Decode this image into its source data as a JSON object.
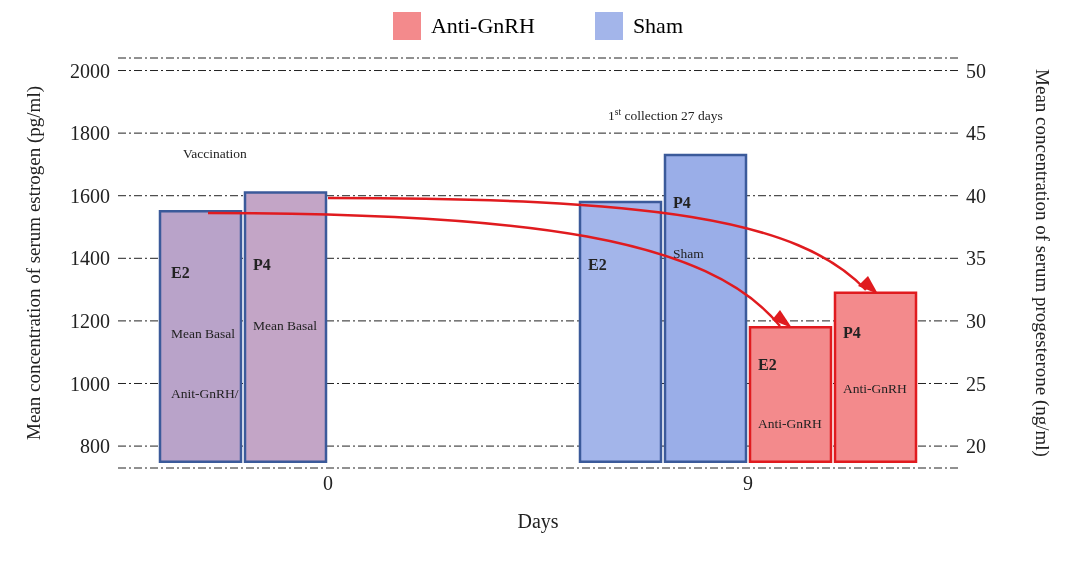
{
  "chart_data": {
    "type": "bar",
    "categories": [
      "0",
      "9"
    ],
    "xlabel": "Days",
    "ylabel": "Mean concentration of serum estrogen (pg/ml)",
    "y2label": "Mean concentration of serum progesterone (ng/ml)",
    "series": [
      {
        "name": "Sham",
        "color": "#a3b5ea",
        "colors": [
          "#b9a3c9",
          "#a3b5ea"
        ],
        "values": [
          800,
          830
        ],
        "base": [
          750,
          750
        ],
        "axis": "y"
      },
      {
        "color": "#8ea4e0",
        "colors": [
          "#c3a5c6",
          "#9aaee8"
        ],
        "values": [
          21.5,
          24.5
        ],
        "base": [
          18.75,
          18.75
        ],
        "axis": "y2"
      },
      {
        "name": "Anti-GnRH",
        "color": "#f38a8c",
        "values": [
          null,
          430
        ],
        "base": [
          null,
          750
        ],
        "axis": "y"
      },
      {
        "color": "#f38a8c",
        "values": [
          null,
          13.5
        ],
        "base": [
          null,
          18.75
        ],
        "axis": "y2"
      }
    ],
    "ylim": [
      730,
      2040
    ],
    "yticks": [
      800,
      1000,
      1200,
      1400,
      1600,
      1800,
      2000
    ],
    "y2lim": [
      18.25,
      51
    ],
    "y2ticks": [
      20,
      25,
      30,
      35,
      40,
      45,
      50
    ],
    "grid": "y",
    "legend": "top",
    "annotations": [
      "Vaccination",
      "1$^{st}$ collection 27 days",
      "E2",
      "Mean Basal",
      "Anit-GnRH/",
      "P4",
      "Mean Basal",
      "E2",
      "P4",
      "Sham",
      "E2",
      "Anti-GnRH",
      "P4",
      "Anti-GnRH"
    ]
  }
}
